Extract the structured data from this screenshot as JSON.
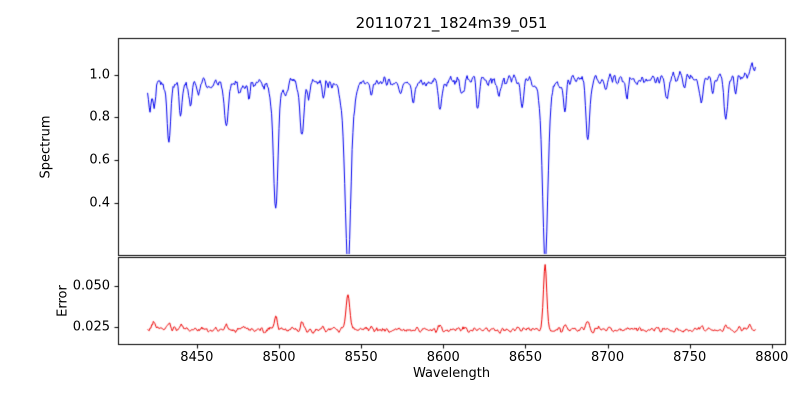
{
  "title": "20110721_1824m39_051",
  "xlabel": "Wavelength",
  "axes": {
    "x": {
      "lim": [
        8402,
        8808
      ],
      "ticks": [
        8450,
        8500,
        8550,
        8600,
        8650,
        8700,
        8750,
        8800
      ],
      "tick_labels": [
        "8450",
        "8500",
        "8550",
        "8600",
        "8650",
        "8700",
        "8750",
        "8800"
      ]
    },
    "spectrum": {
      "label": "Spectrum",
      "lim": [
        0.16,
        1.17
      ],
      "ticks": [
        0.4,
        0.6,
        0.8,
        1.0
      ],
      "tick_labels": [
        "0.4",
        "0.6",
        "0.8",
        "1.0"
      ]
    },
    "error": {
      "label": "Error",
      "lim": [
        0.0144,
        0.068
      ],
      "ticks": [
        0.025,
        0.05
      ],
      "tick_labels": [
        "0.025",
        "0.050"
      ]
    }
  },
  "chart_data": {
    "type": "line",
    "title": "20110721_1824m39_051",
    "xlabel": "Wavelength",
    "xlim": [
      8402,
      8808
    ],
    "x_range_data": [
      8420,
      8790
    ],
    "x_step": 0.5,
    "grid": false,
    "legend": "none",
    "series": [
      {
        "name": "spectrum",
        "panel": "spectrum",
        "color": "#0000ee",
        "model": {
          "continuum_base": 0.952,
          "continuum_slope": 9e-05,
          "noise_sigma": 0.021,
          "absorption_lines": [
            [
              8421.5,
              0.1,
              0.8
            ],
            [
              8424,
              0.07,
              1.0
            ],
            [
              8433,
              0.26,
              1.1
            ],
            [
              8440,
              0.13,
              0.9
            ],
            [
              8446,
              0.09,
              0.8
            ],
            [
              8451,
              0.05,
              0.8
            ],
            [
              8468,
              0.21,
              1.1
            ],
            [
              8476,
              0.05,
              0.8
            ],
            [
              8482,
              0.07,
              0.8
            ],
            [
              8498,
              0.08,
              3.0
            ],
            [
              8498,
              0.52,
              1.3
            ],
            [
              8504,
              0.06,
              0.8
            ],
            [
              8514,
              0.26,
              1.1
            ],
            [
              8518,
              0.08,
              0.8
            ],
            [
              8527,
              0.06,
              0.8
            ],
            [
              8542,
              0.1,
              4.0
            ],
            [
              8542,
              0.74,
              1.7
            ],
            [
              8556,
              0.06,
              0.8
            ],
            [
              8574,
              0.05,
              0.8
            ],
            [
              8582,
              0.09,
              0.8
            ],
            [
              8598,
              0.15,
              0.9
            ],
            [
              8611,
              0.08,
              0.8
            ],
            [
              8621,
              0.13,
              0.9
            ],
            [
              8634,
              0.06,
              0.8
            ],
            [
              8648,
              0.11,
              0.9
            ],
            [
              8662,
              0.1,
              4.0
            ],
            [
              8662,
              0.76,
              1.5
            ],
            [
              8674,
              0.16,
              0.9
            ],
            [
              8688,
              0.29,
              1.1
            ],
            [
              8699,
              0.06,
              0.8
            ],
            [
              8712,
              0.09,
              0.8
            ],
            [
              8736,
              0.1,
              0.9
            ],
            [
              8747,
              0.06,
              0.8
            ],
            [
              8757,
              0.13,
              0.9
            ],
            [
              8764,
              0.08,
              0.8
            ],
            [
              8772,
              0.2,
              1.0
            ],
            [
              8778,
              0.07,
              0.8
            ]
          ],
          "emission_bumps": [
            [
              8788,
              0.07,
              1.2
            ]
          ]
        }
      },
      {
        "name": "error",
        "panel": "error",
        "color": "#ee0000",
        "model": {
          "baseline": 0.0232,
          "noise_sigma": 0.0015,
          "peaks": [
            [
              8424,
              0.003,
              1.0
            ],
            [
              8433,
              0.005,
              1.0
            ],
            [
              8440,
              0.002,
              0.8
            ],
            [
              8468,
              0.004,
              1.0
            ],
            [
              8482,
              0.001,
              0.8
            ],
            [
              8498,
              0.008,
              1.0
            ],
            [
              8514,
              0.004,
              0.9
            ],
            [
              8542,
              0.021,
              1.2
            ],
            [
              8598,
              0.001,
              0.8
            ],
            [
              8621,
              0.001,
              0.8
            ],
            [
              8662,
              0.04,
              1.0
            ],
            [
              8674,
              0.002,
              0.8
            ],
            [
              8688,
              0.004,
              0.9
            ],
            [
              8712,
              0.001,
              0.8
            ],
            [
              8736,
              0.001,
              0.8
            ],
            [
              8757,
              0.002,
              0.8
            ],
            [
              8772,
              0.003,
              0.9
            ],
            [
              8786,
              0.002,
              0.9
            ]
          ]
        }
      }
    ]
  }
}
